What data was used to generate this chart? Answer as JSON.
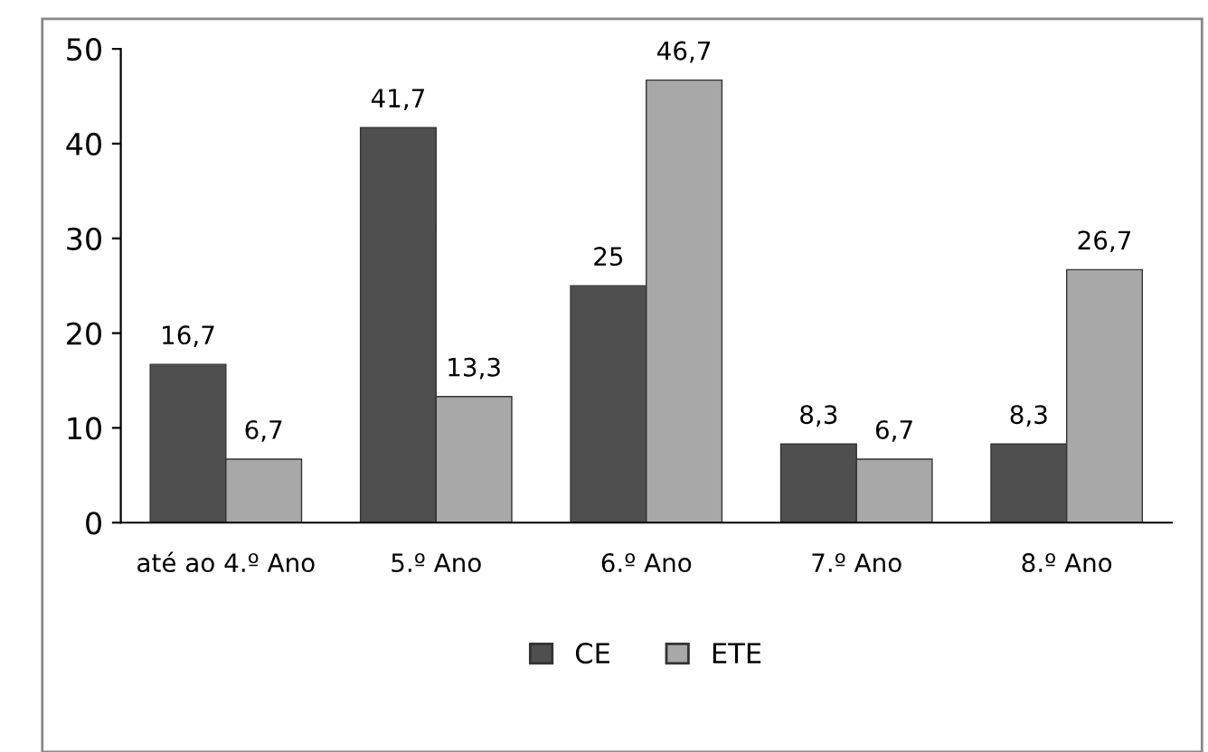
{
  "chart_data": {
    "type": "bar",
    "categories": [
      "até ao 4.º Ano",
      "5.º Ano",
      "6.º Ano",
      "7.º Ano",
      "8.º Ano"
    ],
    "series": [
      {
        "name": "CE",
        "color": "#4f4f4f",
        "values": [
          16.7,
          41.7,
          25,
          8.3,
          8.3
        ],
        "value_labels": [
          "16,7",
          "41,7",
          "25",
          "8,3",
          "8,3"
        ]
      },
      {
        "name": "ETE",
        "color": "#a8a8a8",
        "values": [
          6.7,
          13.3,
          46.7,
          6.7,
          26.7
        ],
        "value_labels": [
          "6,7",
          "13,3",
          "46,7",
          "6,7",
          "26,7"
        ]
      }
    ],
    "ylim": [
      0,
      50
    ],
    "yticks": [
      0,
      10,
      20,
      30,
      40,
      50
    ],
    "grid": false,
    "legend": "bottom"
  }
}
